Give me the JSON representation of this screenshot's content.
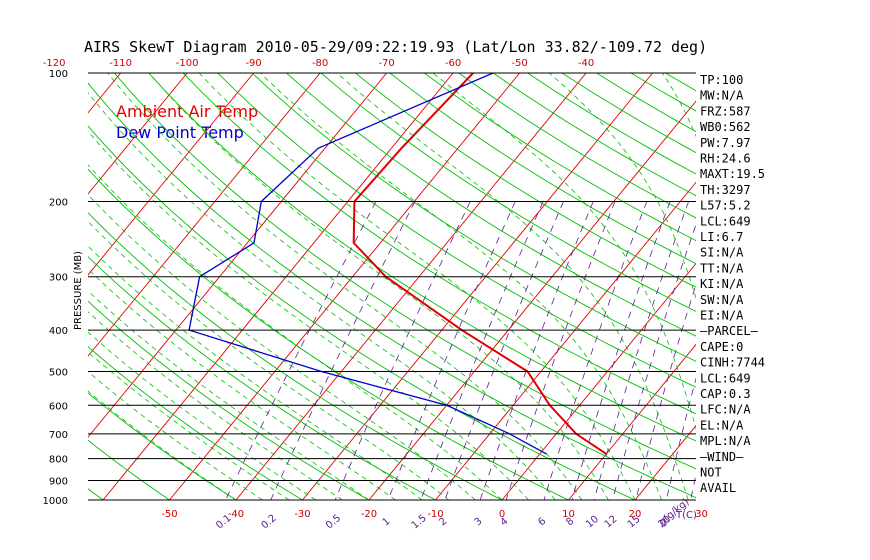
{
  "chart_data": {
    "type": "line",
    "title": "AIRS SkewT Diagram 2010-05-29/09:22:19.93 (Lat/Lon 33.82/-109.72 deg)",
    "ylabel": "PRESSURE (MB)",
    "pressure_ticks": [
      100,
      200,
      300,
      400,
      500,
      600,
      700,
      800,
      900,
      1000
    ],
    "bottom_temp_ticks": [
      -50,
      -40,
      -30,
      -20,
      -10,
      0,
      10,
      20,
      30
    ],
    "bottom_axis_label": "T(C)",
    "top_temp_ticks": [
      -120,
      -110,
      -100,
      -90,
      -80,
      -70,
      -60,
      -50,
      -40
    ],
    "mixing_ratio_labels": [
      "0.1",
      "0.2",
      "0.5",
      "1",
      "1.5",
      "2",
      "3",
      "4",
      "6",
      "8",
      "10",
      "12",
      "15",
      "20",
      "25",
      "30",
      "40"
    ],
    "mixing_ratio_unit": "g(g/kg)",
    "legend": [
      {
        "label": "Ambient Air Temp",
        "color": "#e00000"
      },
      {
        "label": "Dew Point Temp",
        "color": "#0000cc"
      }
    ],
    "series": [
      {
        "name": "Ambient Air Temp",
        "color": "#e00000",
        "points": [
          {
            "p": 100,
            "t": -57
          },
          {
            "p": 150,
            "t": -58.5
          },
          {
            "p": 200,
            "t": -59
          },
          {
            "p": 250,
            "t": -54
          },
          {
            "p": 300,
            "t": -45
          },
          {
            "p": 400,
            "t": -27
          },
          {
            "p": 500,
            "t": -12
          },
          {
            "p": 600,
            "t": -4.5
          },
          {
            "p": 700,
            "t": 3
          },
          {
            "p": 780,
            "t": 10
          }
        ]
      },
      {
        "name": "Dew Point Temp",
        "color": "#0000cc",
        "points": [
          {
            "p": 100,
            "t": -54
          },
          {
            "p": 150,
            "t": -71
          },
          {
            "p": 200,
            "t": -73
          },
          {
            "p": 250,
            "t": -69
          },
          {
            "p": 300,
            "t": -73
          },
          {
            "p": 400,
            "t": -68
          },
          {
            "p": 500,
            "t": -43
          },
          {
            "p": 600,
            "t": -20
          },
          {
            "p": 700,
            "t": -7
          },
          {
            "p": 780,
            "t": 1
          }
        ]
      }
    ]
  },
  "side_panel": [
    "TP:100",
    "MW:N/A",
    "FRZ:587",
    "WB0:562",
    "PW:7.97",
    "RH:24.6",
    "MAXT:19.5",
    "TH:3297",
    "L57:5.2",
    "LCL:649",
    "LI:6.7",
    "SI:N/A",
    "TT:N/A",
    "KI:N/A",
    "SW:N/A",
    "EI:N/A",
    "—PARCEL—",
    "CAPE:0",
    "CINH:7744",
    "LCL:649",
    "CAP:0.3",
    "LFC:N/A",
    "EL:N/A",
    "MPL:N/A",
    "—WIND—",
    "NOT",
    "AVAIL"
  ],
  "colors": {
    "isotherm": "#e00000",
    "dry_adiabat": "#00c000",
    "moist_adiabat": "#00c000",
    "mixing_ratio": "#5a2090",
    "temp_axis_text": "#cc0000",
    "mixing_text": "#5a2090",
    "pressure_text": "#000000"
  }
}
